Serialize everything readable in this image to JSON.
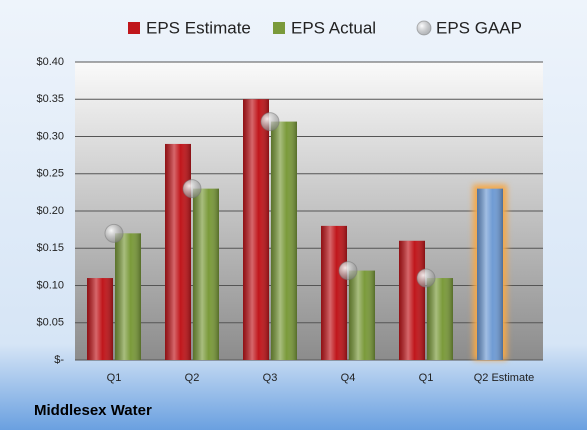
{
  "chart_data": {
    "type": "bar",
    "footer": "Middlesex Water",
    "categories": [
      "Q1",
      "Q2",
      "Q3",
      "Q4",
      "Q1",
      "Q2 Estimate"
    ],
    "series": [
      {
        "name": "EPS Estimate",
        "color": "#c0161b",
        "colors": [
          "#c0161b",
          "#c0161b",
          "#c0161b",
          "#c0161b",
          "#c0161b",
          "#6f9bd4"
        ],
        "values": [
          0.11,
          0.29,
          0.35,
          0.18,
          0.16,
          0.23
        ]
      },
      {
        "name": "EPS Actual",
        "color": "#7a9a3a",
        "values": [
          0.17,
          0.23,
          0.32,
          0.12,
          0.11,
          null
        ]
      },
      {
        "name": "EPS GAAP",
        "color": "#a9aab0",
        "marker": "circle",
        "values": [
          0.17,
          0.23,
          0.32,
          0.12,
          0.11,
          null
        ]
      }
    ],
    "highlight_color": "#f5a84a",
    "ylim": [
      0,
      0.4
    ],
    "yticks": [
      {
        "value": 0,
        "label": "$-"
      },
      {
        "value": 0.05,
        "label": "$0.05"
      },
      {
        "value": 0.1,
        "label": "$0.10"
      },
      {
        "value": 0.15,
        "label": "$0.15"
      },
      {
        "value": 0.2,
        "label": "$0.20"
      },
      {
        "value": 0.25,
        "label": "$0.25"
      },
      {
        "value": 0.3,
        "label": "$0.30"
      },
      {
        "value": 0.35,
        "label": "$0.35"
      },
      {
        "value": 0.4,
        "label": "$0.40"
      }
    ],
    "grid": true
  }
}
